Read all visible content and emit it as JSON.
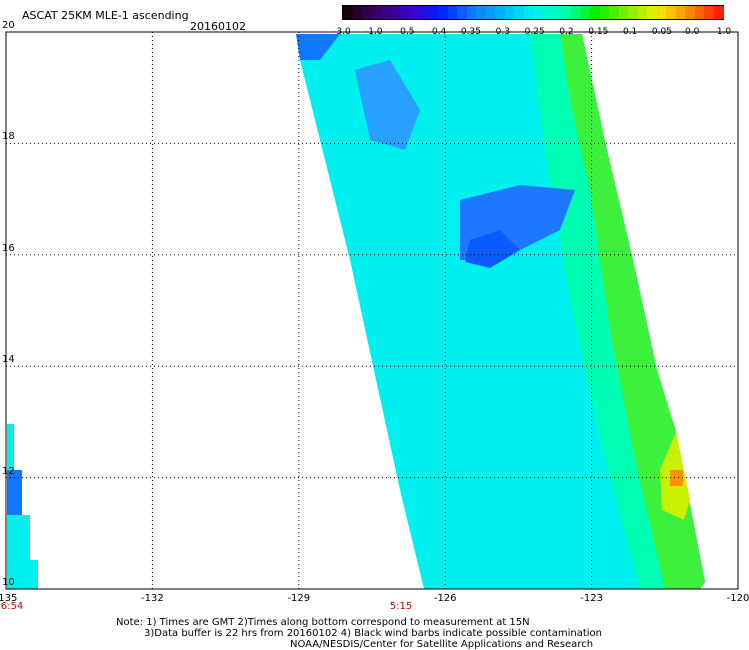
{
  "header": {
    "title": "ASCAT 25KM MLE-1 ascending",
    "date": "20160102"
  },
  "colorbar": {
    "labels": [
      "-3.0",
      "-1.0",
      "-0.5",
      "-0.4",
      "-0.35",
      "-0.3",
      "-0.25",
      "-0.2",
      "-0.15",
      "-0.1",
      "-0.05",
      "0.0",
      "1.0"
    ],
    "colors": [
      "#1a0010",
      "#3d0072",
      "#3b00c8",
      "#0020ff",
      "#0f78ff",
      "#00b4ff",
      "#00f0f0",
      "#00ffb4",
      "#00f000",
      "#78f000",
      "#f0f000",
      "#ff9000",
      "#ff1e00"
    ]
  },
  "map": {
    "x_ticks": [
      "-135",
      "-132",
      "-129",
      "-126",
      "-123",
      "-120"
    ],
    "y_ticks": [
      "20",
      "18",
      "16",
      "14",
      "12",
      "10"
    ],
    "lon_range": [
      -135,
      -120
    ],
    "lat_range": [
      10,
      20
    ],
    "swath_times": [
      "6:54",
      "5:15"
    ]
  },
  "notes": {
    "line1": "Note: 1) Times are GMT 2)Times along bottom correspond to measurement at 15N",
    "line2": "3)Data buffer is 22 hrs from 20160102 4) Black wind barbs indicate possible contamination",
    "line3": "NOAA/NESDIS/Center for Satellite Applications and Research"
  }
}
